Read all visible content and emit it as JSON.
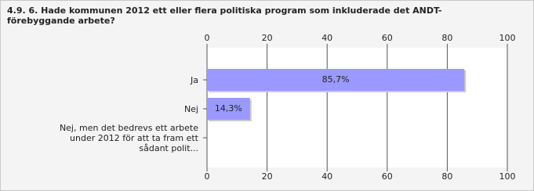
{
  "chart_data": {
    "type": "bar",
    "orientation": "horizontal",
    "title": "4.9. 6. Hade kommunen 2012 ett eller flera politiska program som inkluderade det ANDT-förebyggande arbete?",
    "categories": [
      "Ja",
      "Nej",
      "Nej, men det bedrevs ett arbete under 2012 för att ta fram ett sådant polit..."
    ],
    "values": [
      85.7,
      14.3,
      0
    ],
    "value_labels": [
      "85,7%",
      "14,3%",
      null
    ],
    "color": "#9999ff",
    "xlim": [
      0,
      100
    ],
    "xticks": [
      0,
      20,
      40,
      60,
      80,
      100
    ],
    "grid": true
  }
}
